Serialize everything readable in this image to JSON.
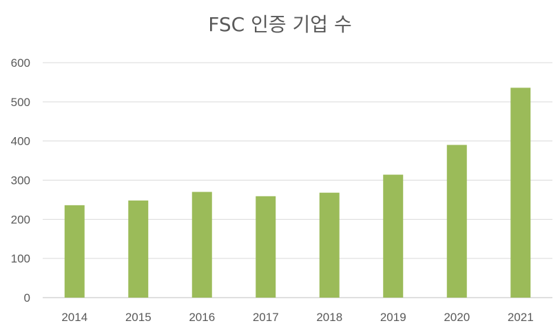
{
  "chart_data": {
    "type": "bar",
    "title": "FSC 인증 기업 수",
    "categories": [
      "2014",
      "2015",
      "2016",
      "2017",
      "2018",
      "2019",
      "2020",
      "2021"
    ],
    "values": [
      236,
      248,
      270,
      259,
      268,
      314,
      390,
      536
    ],
    "ylim": [
      0,
      600
    ],
    "yticks": [
      0,
      100,
      200,
      300,
      400,
      500,
      600
    ],
    "xlabel": "",
    "ylabel": "",
    "grid": true,
    "legend": "none",
    "colors": {
      "bar": "#9BBB59",
      "grid": "#D9D9D9",
      "text": "#595959"
    }
  }
}
